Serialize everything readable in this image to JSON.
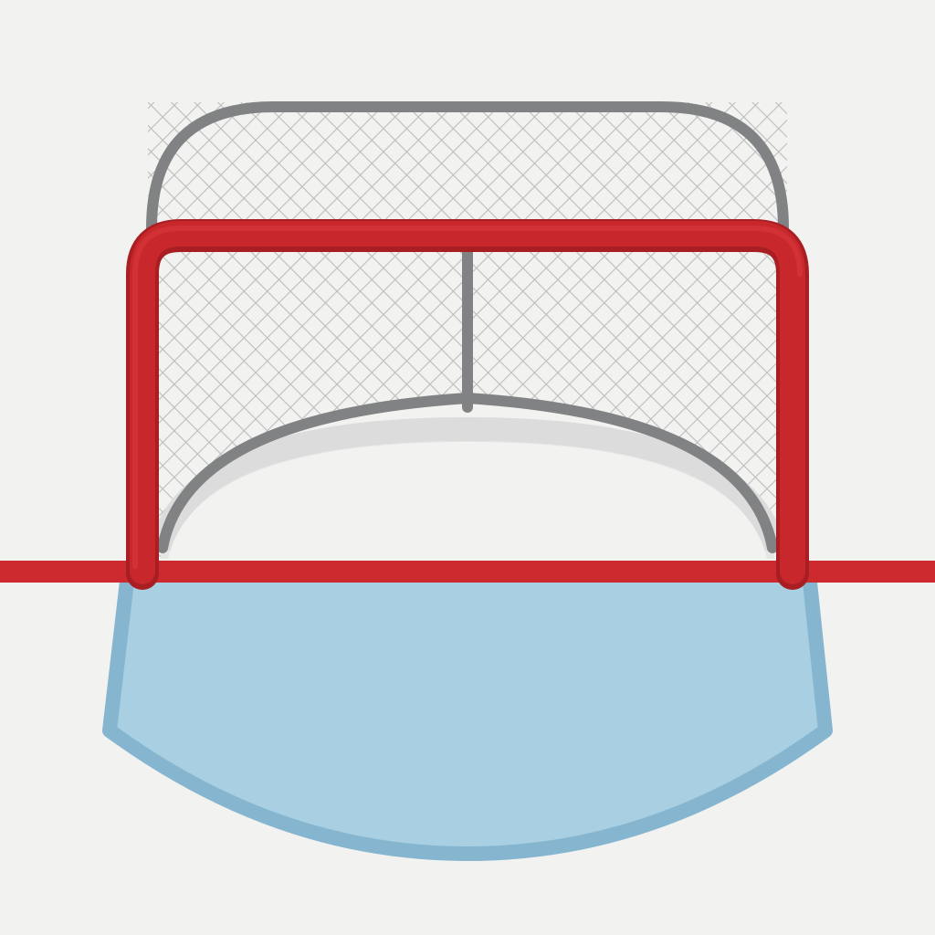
{
  "scene": {
    "subject": "hockey-goal-and-crease",
    "colors": {
      "ice": "#f2f2f1",
      "goal_frame_red": "#c8282c",
      "goal_frame_red_dark": "#a81e22",
      "goal_line_red": "#cc2a2e",
      "net_mesh": "#bdbdbd",
      "net_frame_gray": "#808283",
      "crease_fill": "#a9d0e2",
      "crease_border": "#86b6cf",
      "base_shadow": "#dcdcdc"
    },
    "icons": [
      "hockey-net-icon",
      "goal-crease-icon",
      "goal-line-icon"
    ]
  }
}
